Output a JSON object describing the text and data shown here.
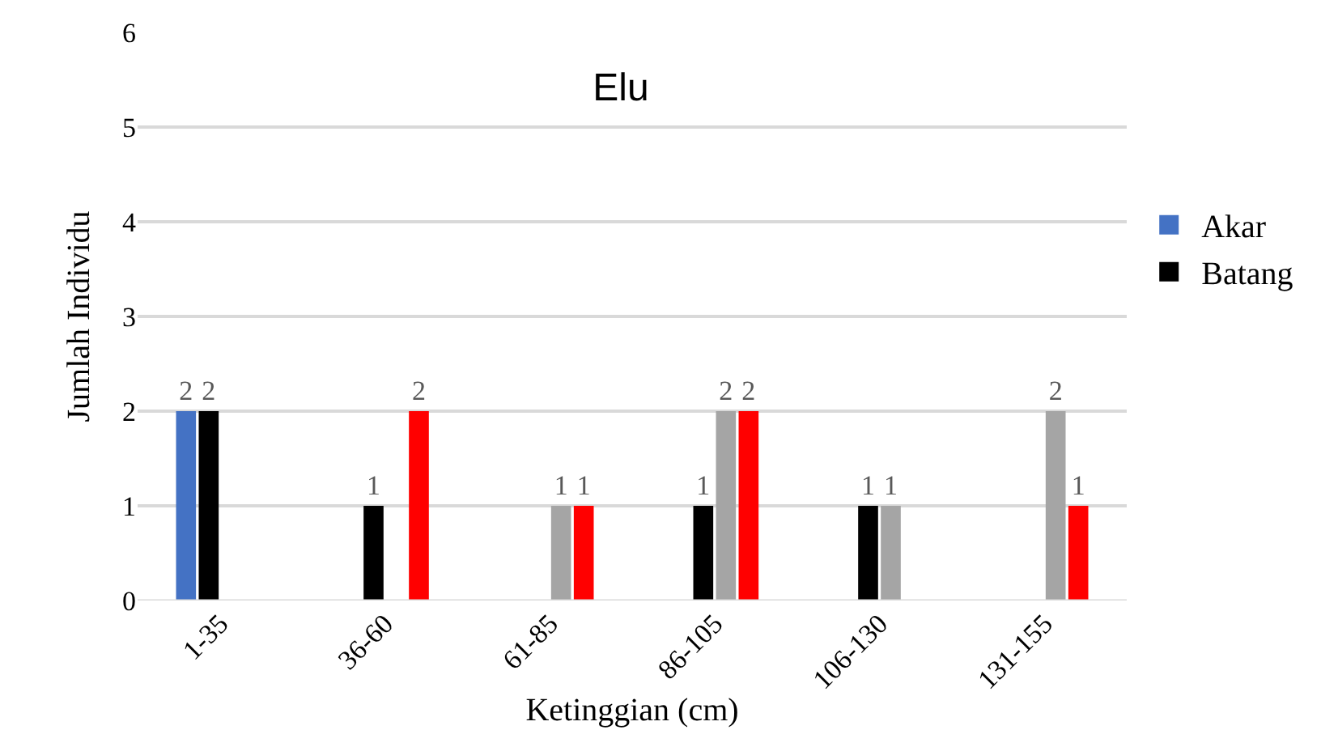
{
  "chart_data": {
    "type": "bar",
    "title": "Elu",
    "xlabel": "Ketinggian (cm)",
    "ylabel": "Jumlah Individu",
    "categories": [
      "1-35",
      "36-60",
      "61-85",
      "86-105",
      "106-130",
      "131-155"
    ],
    "series": [
      {
        "name": "Akar",
        "color": "#4472c4",
        "values": [
          2,
          null,
          null,
          null,
          null,
          null
        ]
      },
      {
        "name": "Batang",
        "color": "#000000",
        "values": [
          2,
          1,
          null,
          1,
          1,
          null
        ]
      },
      {
        "color": "#a5a5a5",
        "values": [
          null,
          null,
          1,
          2,
          1,
          2
        ]
      },
      {
        "color": "#ff0000",
        "values": [
          null,
          2,
          1,
          2,
          null,
          1
        ]
      }
    ],
    "ylim": [
      0,
      6
    ],
    "yticks": [
      0,
      1,
      2,
      3,
      4,
      5,
      6
    ],
    "grid": "y",
    "legend": "right",
    "data_labels": true
  }
}
